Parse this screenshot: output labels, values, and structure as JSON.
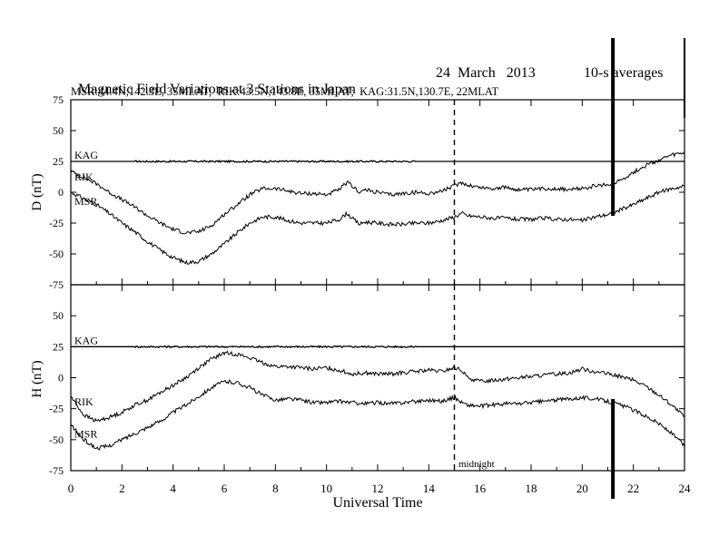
{
  "title": "Magnetic Field Variations at 3 Stations in Japan",
  "date": "24  March   2013",
  "averaging": "10-s averages",
  "subtitle": "MSR:44.4N,142.3E, 35MLAT;  RIK:43.5N,143.8E, 35MLAT;  KAG:31.5N,130.7E, 22MLAT",
  "xlabel": "Universal Time",
  "annotation_midnight": "midnight",
  "chart_data": [
    {
      "type": "line",
      "panel": "top",
      "ylabel": "D (nT)",
      "xlim": [
        0,
        24
      ],
      "ylim": [
        -75,
        75
      ],
      "x_ticks": [
        0,
        2,
        4,
        6,
        8,
        10,
        12,
        14,
        16,
        18,
        20,
        22,
        24
      ],
      "y_ticks": [
        -75,
        -50,
        -25,
        0,
        25,
        50,
        75
      ],
      "series": [
        {
          "name": "KAG",
          "x": [
            0,
            24
          ],
          "y": [
            25,
            25
          ]
        },
        {
          "name": "RIK",
          "x": [
            0,
            0.5,
            1,
            1.5,
            2,
            2.5,
            3,
            3.5,
            4,
            4.5,
            5,
            5.5,
            6,
            6.5,
            7,
            7.5,
            8,
            8.5,
            9,
            9.5,
            10,
            10.5,
            10.8,
            11,
            11.3,
            11.5,
            12,
            12.5,
            13,
            13.5,
            14,
            14.5,
            15,
            15.3,
            15.5,
            16,
            16.5,
            17,
            17.5,
            18,
            18.5,
            19,
            19.5,
            20,
            20.5,
            21,
            21.3,
            21.5,
            22,
            22.5,
            23,
            23.5,
            24
          ],
          "y": [
            17,
            12,
            7,
            0,
            -6,
            -12,
            -19,
            -25,
            -30,
            -33,
            -32,
            -27,
            -18,
            -10,
            -2,
            3,
            3,
            1,
            -1,
            -1,
            -2,
            2,
            8,
            5,
            0,
            2,
            0,
            -2,
            -1,
            0,
            -1,
            1,
            5,
            8,
            6,
            4,
            3,
            4,
            2,
            2,
            3,
            3,
            2,
            3,
            5,
            6,
            8,
            10,
            16,
            22,
            26,
            30,
            32
          ]
        },
        {
          "name": "MSR",
          "x": [
            0,
            0.5,
            1,
            1.5,
            2,
            2.5,
            3,
            3.5,
            4,
            4.5,
            5,
            5.5,
            6,
            6.5,
            7,
            7.5,
            8,
            8.5,
            9,
            9.5,
            10,
            10.5,
            10.8,
            11,
            11.3,
            11.5,
            12,
            12.5,
            13,
            13.5,
            14,
            14.5,
            15,
            15.3,
            15.5,
            16,
            16.5,
            17,
            17.5,
            18,
            18.5,
            19,
            19.5,
            20,
            20.5,
            21,
            21.3,
            21.5,
            22,
            22.5,
            23,
            23.5,
            24
          ],
          "y": [
            0,
            -5,
            -10,
            -17,
            -25,
            -32,
            -40,
            -47,
            -53,
            -57,
            -56,
            -50,
            -42,
            -33,
            -25,
            -20,
            -20,
            -23,
            -25,
            -25,
            -25,
            -22,
            -17,
            -21,
            -26,
            -24,
            -25,
            -26,
            -26,
            -25,
            -25,
            -23,
            -20,
            -17,
            -19,
            -20,
            -21,
            -21,
            -22,
            -22,
            -21,
            -22,
            -22,
            -23,
            -20,
            -18,
            -16,
            -14,
            -10,
            -5,
            0,
            3,
            5
          ]
        }
      ],
      "labels": [
        "KAG",
        "RIK",
        "MSR"
      ]
    },
    {
      "type": "line",
      "panel": "bottom",
      "ylabel": "H (nT)",
      "xlim": [
        0,
        24
      ],
      "ylim": [
        -75,
        75
      ],
      "x_ticks": [
        0,
        2,
        4,
        6,
        8,
        10,
        12,
        14,
        16,
        18,
        20,
        22,
        24
      ],
      "x_tick_labels": [
        "0",
        "2",
        "4",
        "6",
        "8",
        "10",
        "12",
        "14",
        "16",
        "18",
        "20",
        "22",
        "24"
      ],
      "y_ticks": [
        -75,
        -50,
        -25,
        0,
        25,
        50,
        75
      ],
      "vline": 15,
      "series": [
        {
          "name": "KAG",
          "x": [
            0,
            24
          ],
          "y": [
            25,
            25
          ]
        },
        {
          "name": "RIK",
          "x": [
            0,
            0.5,
            1,
            1.5,
            2,
            2.5,
            3,
            3.5,
            4,
            4.5,
            5,
            5.5,
            6,
            6.5,
            7,
            7.5,
            8,
            8.5,
            9,
            9.5,
            10,
            10.5,
            11,
            11.5,
            12,
            12.5,
            13,
            13.5,
            14,
            14.5,
            15,
            15.3,
            15.5,
            16,
            16.5,
            17,
            17.5,
            18,
            18.5,
            19,
            19.5,
            20,
            20.5,
            21,
            21.5,
            22,
            22.5,
            23,
            23.5,
            24
          ],
          "y": [
            -15,
            -30,
            -35,
            -32,
            -28,
            -22,
            -18,
            -12,
            -6,
            0,
            8,
            15,
            20,
            19,
            16,
            12,
            9,
            9,
            8,
            7,
            8,
            6,
            3,
            4,
            3,
            3,
            4,
            5,
            6,
            5,
            8,
            6,
            0,
            -3,
            -2,
            -1,
            0,
            1,
            2,
            3,
            4,
            7,
            5,
            3,
            1,
            -2,
            -7,
            -14,
            -22,
            -32
          ]
        },
        {
          "name": "MSR",
          "x": [
            0,
            0.5,
            1,
            1.5,
            2,
            2.5,
            3,
            3.5,
            4,
            4.5,
            5,
            5.5,
            6,
            6.5,
            7,
            7.5,
            8,
            8.5,
            9,
            9.5,
            10,
            10.5,
            11,
            11.5,
            12,
            12.5,
            13,
            13.5,
            14,
            14.5,
            15,
            15.3,
            15.5,
            16,
            16.5,
            17,
            17.5,
            18,
            18.5,
            19,
            19.5,
            20,
            20.5,
            21,
            21.5,
            22,
            22.5,
            23,
            23.5,
            24
          ],
          "y": [
            -38,
            -50,
            -57,
            -55,
            -50,
            -45,
            -40,
            -35,
            -28,
            -22,
            -15,
            -8,
            -3,
            -4,
            -8,
            -14,
            -18,
            -17,
            -18,
            -20,
            -20,
            -19,
            -20,
            -21,
            -20,
            -21,
            -20,
            -19,
            -18,
            -19,
            -16,
            -20,
            -22,
            -23,
            -22,
            -21,
            -21,
            -20,
            -19,
            -18,
            -17,
            -16,
            -17,
            -19,
            -22,
            -26,
            -31,
            -37,
            -45,
            -55
          ]
        }
      ],
      "labels": [
        "KAG",
        "RIK",
        "MSR"
      ]
    }
  ]
}
